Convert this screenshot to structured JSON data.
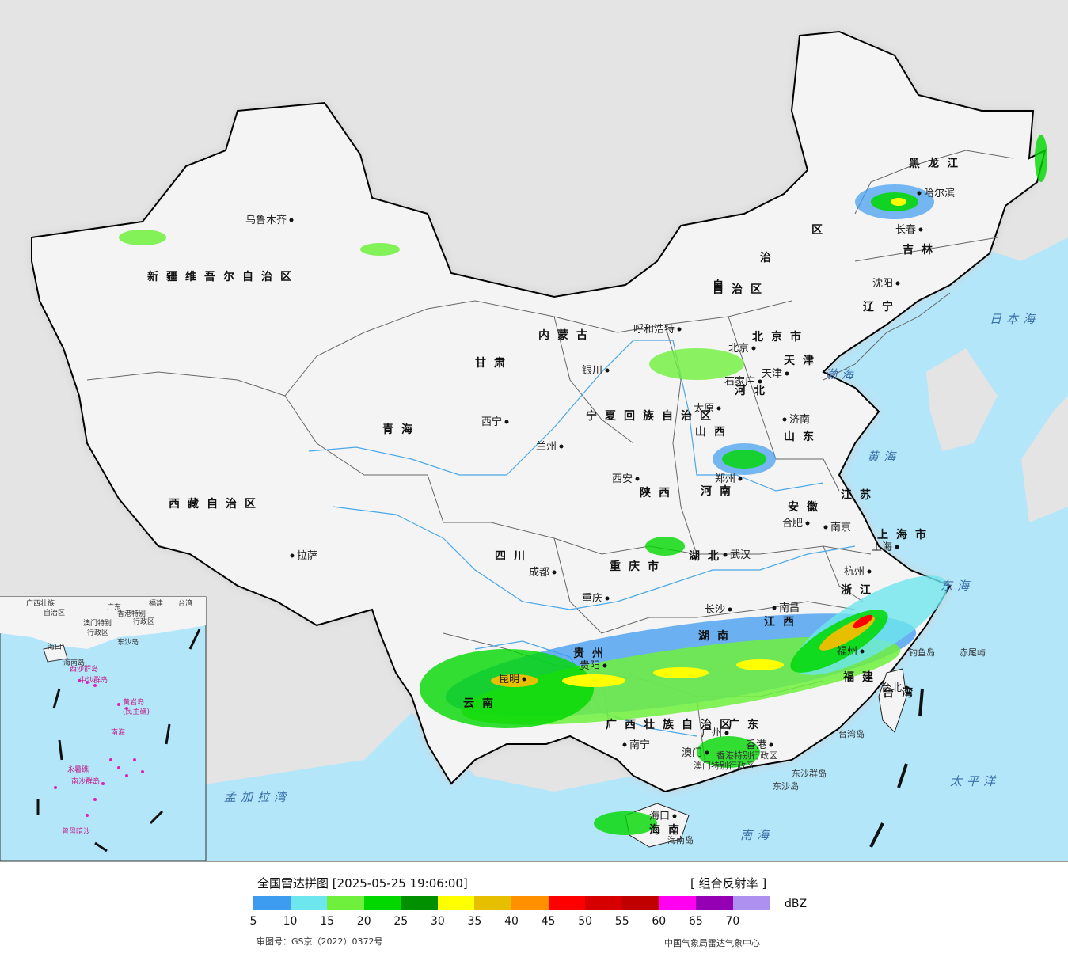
{
  "map": {
    "cities": [
      {
        "name": "乌鲁木齐",
        "dot": "right"
      },
      {
        "name": "拉萨"
      },
      {
        "name": "西宁"
      },
      {
        "name": "兰州"
      },
      {
        "name": "银川"
      },
      {
        "name": "呼和浩特"
      },
      {
        "name": "北京"
      },
      {
        "name": "天津"
      },
      {
        "name": "石家庄"
      },
      {
        "name": "太原"
      },
      {
        "name": "济南"
      },
      {
        "name": "郑州"
      },
      {
        "name": "西安"
      },
      {
        "name": "成都"
      },
      {
        "name": "重庆"
      },
      {
        "name": "武汉"
      },
      {
        "name": "合肥"
      },
      {
        "name": "南京"
      },
      {
        "name": "上海"
      },
      {
        "name": "杭州"
      },
      {
        "name": "长沙"
      },
      {
        "name": "南昌"
      },
      {
        "name": "福州"
      },
      {
        "name": "台北"
      },
      {
        "name": "贵阳"
      },
      {
        "name": "昆明"
      },
      {
        "name": "南宁"
      },
      {
        "name": "广州"
      },
      {
        "name": "香港"
      },
      {
        "name": "澳门"
      },
      {
        "name": "海口"
      },
      {
        "name": "沈阳"
      },
      {
        "name": "长春"
      },
      {
        "name": "哈尔滨"
      }
    ],
    "provinces": [
      "新疆维吾尔自治区",
      "西藏自治区",
      "青海",
      "甘肃",
      "内蒙古",
      "黑龙江",
      "吉林",
      "辽宁",
      "河北",
      "山西",
      "山东",
      "河南",
      "陕西",
      "四川",
      "重庆市",
      "湖北",
      "安徽",
      "江苏",
      "上海市",
      "浙江",
      "湖南",
      "江西",
      "福建",
      "贵州",
      "云南",
      "广西壮族自治区",
      "广东",
      "台湾",
      "海南",
      "宁夏回族自治区",
      "北京市",
      "天津",
      "自治区",
      "区",
      "治",
      "自"
    ],
    "seas": [
      "日本海",
      "渤海",
      "黄海",
      "东海",
      "太平洋",
      "南海",
      "孟加拉湾"
    ],
    "islands": [
      "钓鱼岛",
      "赤尾屿",
      "台湾岛",
      "东沙群岛",
      "东沙岛",
      "海南岛",
      "香港特别行政区",
      "澳门特别行政区"
    ],
    "inset_labels": [
      "广西壮族",
      "自治区",
      "广东",
      "福建",
      "台湾",
      "香港特别",
      "行政区",
      "澳门特别",
      "行政区",
      "东沙岛",
      "海口",
      "海南岛",
      "西沙群岛",
      "中沙群岛",
      "黄岩岛",
      "(民主礁)",
      "南海",
      "永暑礁",
      "南沙群岛",
      "曾母暗沙"
    ]
  },
  "legend": {
    "title": "全国雷达拼图 [2025-05-25 19:06:00]",
    "product": "[ 组合反射率 ]",
    "unit": "dBZ",
    "ticks": [
      "5",
      "10",
      "15",
      "20",
      "25",
      "30",
      "35",
      "40",
      "45",
      "50",
      "55",
      "60",
      "65",
      "70"
    ],
    "colors": [
      "#3d9bf0",
      "#6ee6ee",
      "#6ff03c",
      "#00d800",
      "#009000",
      "#ffff00",
      "#e6c000",
      "#ff9000",
      "#ff0000",
      "#d60000",
      "#c00000",
      "#ff00f0",
      "#9600b4",
      "#ad90f0"
    ],
    "approval": "审图号：GS京（2022）0372号",
    "agency": "中国气象局雷达气象中心"
  }
}
